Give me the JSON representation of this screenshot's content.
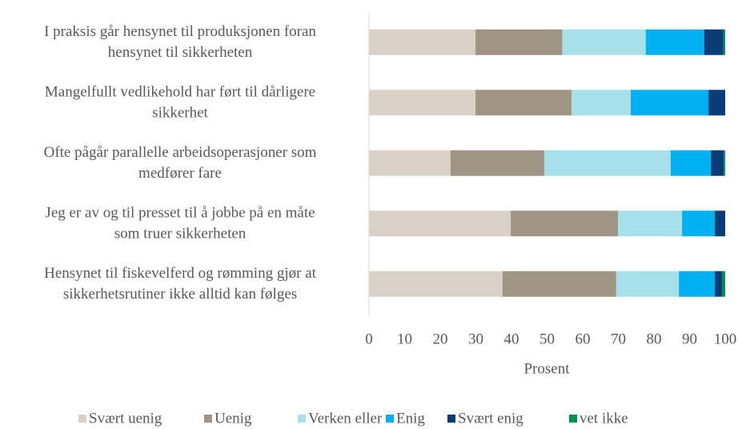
{
  "chart_data": {
    "type": "stacked_barh",
    "categories": [
      [
        "I praksis går hensynet til produksjonen foran",
        "hensynet til sikkerheten"
      ],
      [
        "Mangelfullt vedlikehold har ført til dårligere",
        "sikkerhet"
      ],
      [
        "Ofte pågår parallelle arbeidsoperasjoner som",
        "medfører fare"
      ],
      [
        "Jeg er av og til presset til å jobbe på en måte",
        "som truer sikkerheten"
      ],
      [
        "Hensynet til fiskevelferd og rømming gjør at",
        "sikkerhetsrutiner ikke alltid kan følges"
      ]
    ],
    "series": [
      {
        "name": "Svært uenig",
        "color": "#d9d0c7",
        "values": [
          29.9,
          29.9,
          22.9,
          39.8,
          37.5
        ]
      },
      {
        "name": "Uenig",
        "color": "#a09485",
        "values": [
          24.4,
          27.0,
          26.3,
          30.1,
          31.9
        ]
      },
      {
        "name": "Verken eller",
        "color": "#a6e0ea",
        "values": [
          23.4,
          16.6,
          35.5,
          18.0,
          17.6
        ]
      },
      {
        "name": "Enig",
        "color": "#00b0f0",
        "values": [
          16.4,
          21.8,
          11.3,
          9.2,
          10.1
        ]
      },
      {
        "name": "Svært enig",
        "color": "#0a3d78",
        "values": [
          5.4,
          4.7,
          3.6,
          2.9,
          2.0
        ]
      },
      {
        "name": "vet ikke",
        "color": "#00914c",
        "values": [
          0.5,
          0,
          0.4,
          0,
          0.9
        ]
      }
    ],
    "xlabel": "Prosent",
    "xlim": [
      0,
      100
    ],
    "xticks": [
      0,
      10,
      20,
      30,
      40,
      50,
      60,
      70,
      80,
      90,
      100
    ],
    "legend": "bottom"
  }
}
